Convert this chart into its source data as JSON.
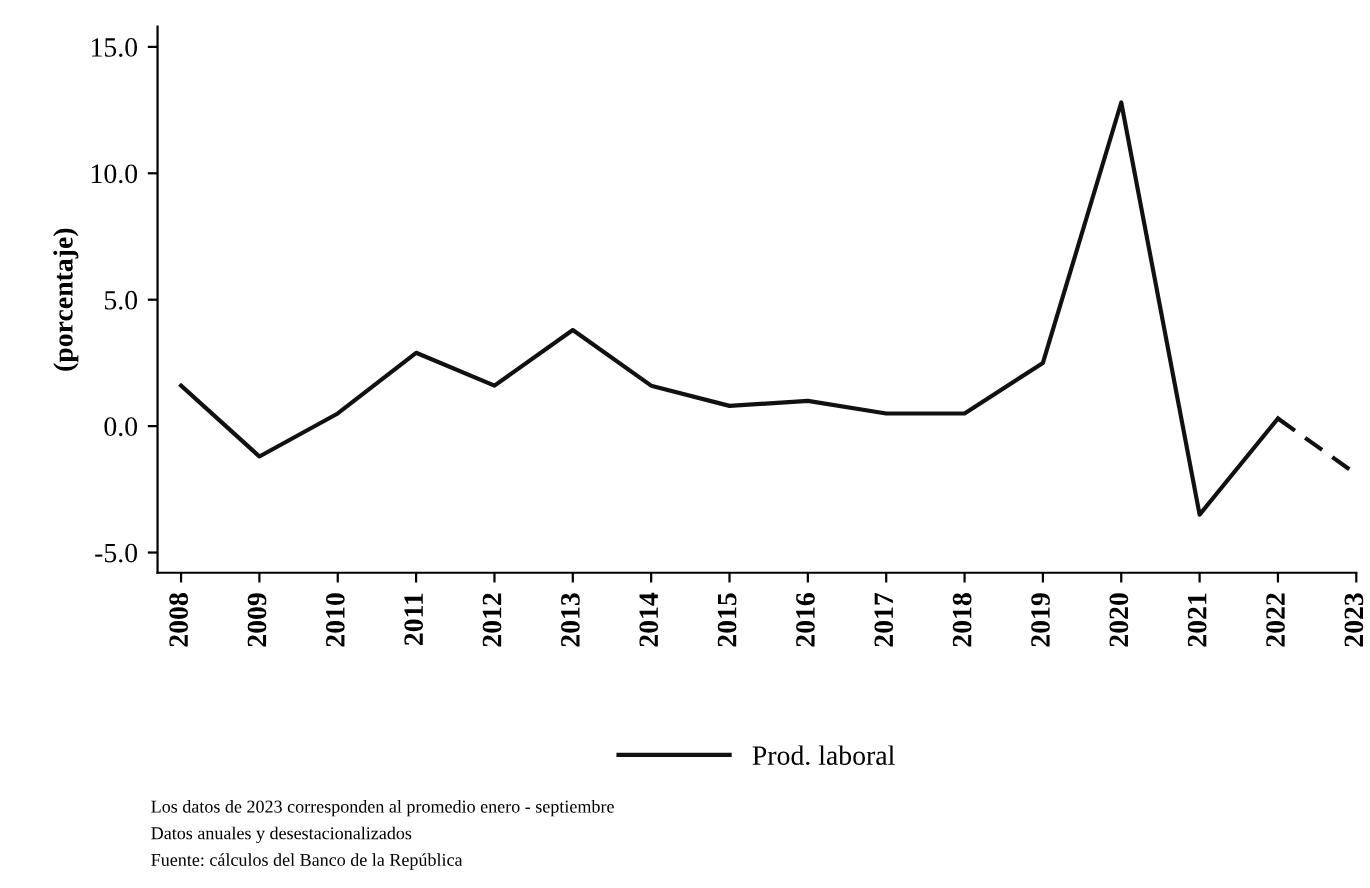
{
  "chart_data": {
    "type": "line",
    "ylabel": "(porcentaje)",
    "categories": [
      "2008",
      "2009",
      "2010",
      "2011",
      "2012",
      "2013",
      "2014",
      "2015",
      "2016",
      "2017",
      "2018",
      "2019",
      "2020",
      "2021",
      "2022",
      "2023"
    ],
    "series": [
      {
        "name": "Prod. laboral",
        "color": "#111111",
        "line_style": "solid",
        "values": [
          1.6,
          -1.2,
          0.5,
          2.9,
          1.6,
          3.8,
          1.6,
          0.8,
          1.0,
          0.5,
          0.5,
          2.5,
          12.8,
          -3.5,
          0.3,
          null
        ]
      },
      {
        "color": "#111111",
        "line_style": "dashed",
        "values": [
          null,
          null,
          null,
          null,
          null,
          null,
          null,
          null,
          null,
          null,
          null,
          null,
          null,
          null,
          0.3,
          -1.9
        ]
      }
    ],
    "ylim": [
      -5.8,
      15.8
    ],
    "yticks": [
      {
        "value": -5,
        "label": "-5.0"
      },
      {
        "value": 0,
        "label": "0.0"
      },
      {
        "value": 5,
        "label": "5.0"
      },
      {
        "value": 10,
        "label": "10.0"
      },
      {
        "value": 15,
        "label": "15.0"
      }
    ],
    "grid": false,
    "legend": "bottom",
    "marker": "none",
    "annotations": [
      "Los datos de 2023 corresponden al promedio enero - septiembre",
      "Datos anuales y desestacionalizados",
      "Fuente: cálculos del Banco de la República"
    ]
  }
}
